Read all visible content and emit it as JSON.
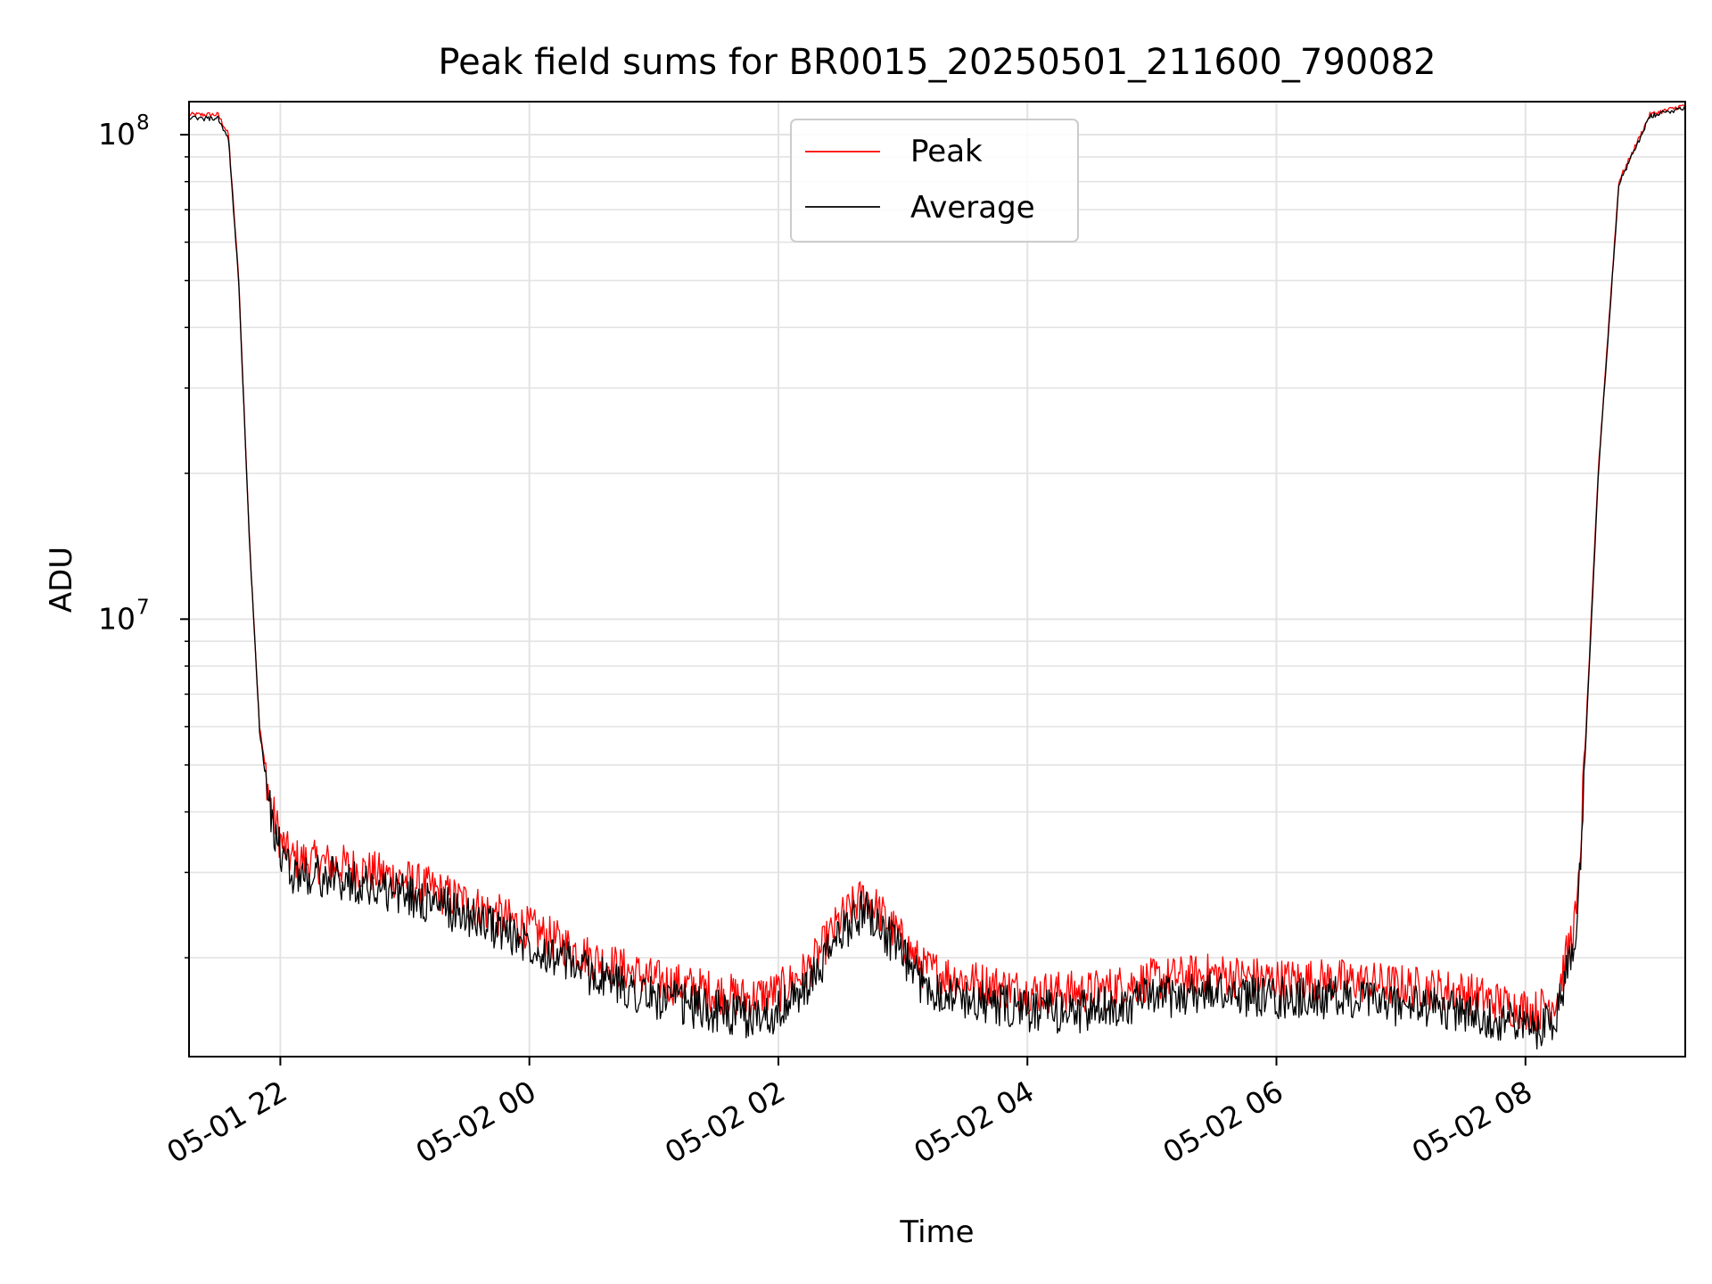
{
  "chart_data": {
    "type": "line",
    "title": "Peak field sums for BR0015_20250501_211600_790082",
    "xlabel": "Time",
    "ylabel": "ADU",
    "yscale": "log",
    "xlim": [
      "2025-05-01 21:16",
      "2025-05-02 09:17"
    ],
    "ylim": [
      1250000,
      117000000
    ],
    "x_ticks": [
      "05-01 22",
      "05-02 00",
      "05-02 02",
      "05-02 04",
      "05-02 06",
      "05-02 08"
    ],
    "x_tick_times": [
      "2025-05-01 22:00",
      "2025-05-02 00:00",
      "2025-05-02 02:00",
      "2025-05-02 04:00",
      "2025-05-02 06:00",
      "2025-05-02 08:00"
    ],
    "y_ticks": [
      {
        "base": "10",
        "exp": "7",
        "value": 10000000
      },
      {
        "base": "10",
        "exp": "8",
        "value": 100000000
      }
    ],
    "grid": true,
    "legend_position": "top-center",
    "series": [
      {
        "name": "Peak",
        "color": "#ff0000",
        "x": [
          "2025-05-01 21:16",
          "2025-05-01 21:30",
          "2025-05-01 21:35",
          "2025-05-01 21:40",
          "2025-05-01 21:45",
          "2025-05-01 21:50",
          "2025-05-01 21:55",
          "2025-05-01 22:00",
          "2025-05-01 22:05",
          "2025-05-01 22:30",
          "2025-05-01 23:00",
          "2025-05-01 23:30",
          "2025-05-02 00:00",
          "2025-05-02 00:30",
          "2025-05-02 01:00",
          "2025-05-02 01:30",
          "2025-05-02 01:45",
          "2025-05-02 02:00",
          "2025-05-02 02:15",
          "2025-05-02 02:30",
          "2025-05-02 02:42",
          "2025-05-02 02:55",
          "2025-05-02 03:10",
          "2025-05-02 03:30",
          "2025-05-02 04:00",
          "2025-05-02 04:30",
          "2025-05-02 05:00",
          "2025-05-02 05:30",
          "2025-05-02 06:00",
          "2025-05-02 06:30",
          "2025-05-02 07:00",
          "2025-05-02 07:30",
          "2025-05-02 07:50",
          "2025-05-02 08:05",
          "2025-05-02 08:15",
          "2025-05-02 08:25",
          "2025-05-02 08:35",
          "2025-05-02 08:45",
          "2025-05-02 09:00",
          "2025-05-02 09:17"
        ],
        "values": [
          110000000,
          110000000,
          100000000,
          50000000,
          15000000,
          6000000,
          4200000,
          3500000,
          3200000,
          3100000,
          2900000,
          2600000,
          2300000,
          2000000,
          1800000,
          1700000,
          1650000,
          1700000,
          1900000,
          2400000,
          2700000,
          2300000,
          1900000,
          1800000,
          1700000,
          1700000,
          1800000,
          1850000,
          1800000,
          1800000,
          1750000,
          1700000,
          1600000,
          1550000,
          1650000,
          2500000,
          20000000,
          80000000,
          110000000,
          115000000
        ]
      },
      {
        "name": "Average",
        "color": "#000000",
        "x": [
          "2025-05-01 21:16",
          "2025-05-01 21:30",
          "2025-05-01 21:35",
          "2025-05-01 21:40",
          "2025-05-01 21:45",
          "2025-05-01 21:50",
          "2025-05-01 21:55",
          "2025-05-01 22:00",
          "2025-05-01 22:05",
          "2025-05-01 22:30",
          "2025-05-01 23:00",
          "2025-05-01 23:30",
          "2025-05-02 00:00",
          "2025-05-02 00:30",
          "2025-05-02 01:00",
          "2025-05-02 01:30",
          "2025-05-02 01:45",
          "2025-05-02 02:00",
          "2025-05-02 02:15",
          "2025-05-02 02:30",
          "2025-05-02 02:42",
          "2025-05-02 02:55",
          "2025-05-02 03:10",
          "2025-05-02 03:30",
          "2025-05-02 04:00",
          "2025-05-02 04:30",
          "2025-05-02 05:00",
          "2025-05-02 05:30",
          "2025-05-02 06:00",
          "2025-05-02 06:30",
          "2025-05-02 07:00",
          "2025-05-02 07:30",
          "2025-05-02 07:50",
          "2025-05-02 08:05",
          "2025-05-02 08:15",
          "2025-05-02 08:25",
          "2025-05-02 08:35",
          "2025-05-02 08:45",
          "2025-05-02 09:00",
          "2025-05-02 09:17"
        ],
        "values": [
          108000000,
          108000000,
          98000000,
          49000000,
          14800000,
          5900000,
          4000000,
          3300000,
          3000000,
          2900000,
          2700000,
          2450000,
          2150000,
          1850000,
          1650000,
          1550000,
          1500000,
          1550000,
          1750000,
          2250000,
          2550000,
          2150000,
          1750000,
          1650000,
          1550000,
          1550000,
          1650000,
          1700000,
          1650000,
          1650000,
          1600000,
          1550000,
          1480000,
          1430000,
          1520000,
          2400000,
          19500000,
          79000000,
          109000000,
          114000000
        ]
      }
    ]
  }
}
